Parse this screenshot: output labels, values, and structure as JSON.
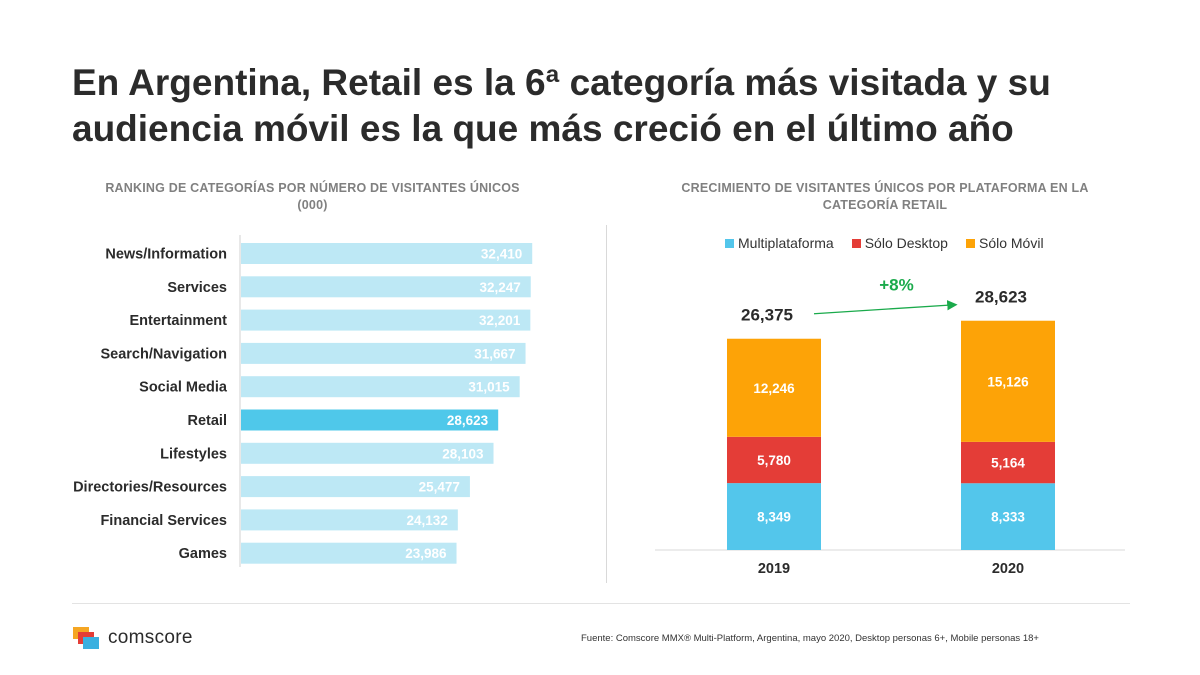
{
  "title": "En Argentina, Retail es la 6ª categoría más visitada y su audiencia móvil es la que más creció en el último año",
  "colors": {
    "bar_light": "#bde8f5",
    "bar_highlight": "#4fc8ea",
    "multiplataforma": "#53c6eb",
    "solo_desktop": "#e43d37",
    "solo_movil": "#fda307",
    "growth_green": "#1aaa4b"
  },
  "chart_data": [
    {
      "type": "bar",
      "orientation": "horizontal",
      "title": "RANKING DE CATEGORÍAS POR NÚMERO DE VISITANTES ÚNICOS (000)",
      "title_lines": [
        "RANKING DE CATEGORÍAS POR NÚMERO DE VISITANTES ÚNICOS",
        "(000)"
      ],
      "categories": [
        "News/Information",
        "Services",
        "Entertainment",
        "Search/Navigation",
        "Social Media",
        "Retail",
        "Lifestyles",
        "Directories/Resources",
        "Financial Services",
        "Games"
      ],
      "values": [
        32410,
        32247,
        32201,
        31667,
        31015,
        28623,
        28103,
        25477,
        24132,
        23986
      ],
      "value_labels": [
        "32,410",
        "32,247",
        "32,201",
        "31,667",
        "31,015",
        "28,623",
        "28,103",
        "25,477",
        "24,132",
        "23,986"
      ],
      "highlight": "Retail",
      "xlim": [
        0,
        34500
      ],
      "grid": false
    },
    {
      "type": "bar",
      "stacked": true,
      "title": "CRECIMIENTO DE VISITANTES ÚNICOS POR PLATAFORMA EN LA CATEGORÍA RETAIL",
      "title_lines": [
        "CRECIMIENTO DE VISITANTES ÚNICOS POR PLATAFORMA EN LA",
        "CATEGORÍA RETAIL"
      ],
      "categories": [
        "2019",
        "2020"
      ],
      "series": [
        {
          "name": "Multiplataforma",
          "values": [
            8349,
            8333
          ],
          "labels": [
            "8,349",
            "8,333"
          ]
        },
        {
          "name": "Sólo Desktop",
          "values": [
            5780,
            5164
          ],
          "labels": [
            "5,780",
            "5,164"
          ]
        },
        {
          "name": "Sólo Móvil",
          "values": [
            12246,
            15126
          ],
          "labels": [
            "12,246",
            "15,126"
          ]
        }
      ],
      "totals": [
        26375,
        28623
      ],
      "total_labels": [
        "26,375",
        "28,623"
      ],
      "growth_annotation": "+8%",
      "legend": "top",
      "ylim": [
        0,
        30000
      ]
    }
  ],
  "footer": {
    "logo_text": "comscore",
    "source": "Fuente: Comscore MMX® Multi-Platform, Argentina, mayo 2020, Desktop personas 6+, Mobile personas 18+"
  }
}
